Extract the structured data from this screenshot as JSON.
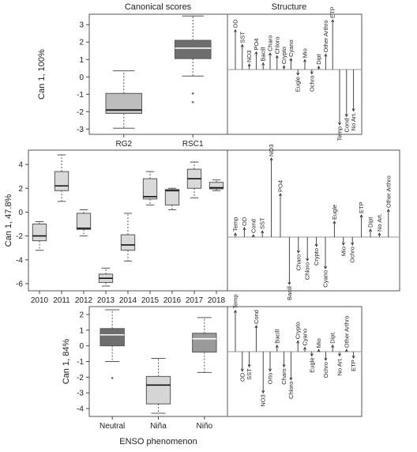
{
  "headers": {
    "left": "Canonical scores",
    "right": "Structure"
  },
  "chart_data": [
    {
      "type": "box",
      "ylabel": "Can 1, 100%",
      "ylim": [
        -3.3,
        3.6
      ],
      "yticks": [
        3,
        2,
        1,
        0,
        -1,
        -2,
        -3
      ],
      "categories": [
        "RG2",
        "RSC1"
      ],
      "boxes": [
        {
          "label": "RG2",
          "min": -2.95,
          "q1": -2.1,
          "median": -1.9,
          "q3": -0.95,
          "max": 0.35,
          "outliers": [],
          "fill": "#bdbdbd"
        },
        {
          "label": "RSC1",
          "min": 0.05,
          "q1": 1.05,
          "median": 1.65,
          "q3": 2.1,
          "max": 3.5,
          "outliers": [
            -0.95,
            -1.45
          ],
          "fill": "#6e6e6e"
        }
      ]
    },
    {
      "type": "biplot",
      "variables": [
        {
          "label": "OD",
          "value": 0.72
        },
        {
          "label": "SST",
          "value": 0.45
        },
        {
          "label": "NO3",
          "value": 0.1
        },
        {
          "label": "PO4",
          "value": 0.32
        },
        {
          "label": "Bacill",
          "value": 0.12
        },
        {
          "label": "Charo",
          "value": 0.3
        },
        {
          "label": "Chloro",
          "value": 0.25
        },
        {
          "label": "Crypto",
          "value": 0.07
        },
        {
          "label": "Cyano",
          "value": 0.2
        },
        {
          "label": "Eugle",
          "value": -0.1
        },
        {
          "label": "Mio",
          "value": 0.18
        },
        {
          "label": "Ochro",
          "value": -0.08
        },
        {
          "label": "Dipt",
          "value": 0.06
        },
        {
          "label": "Other Arthro",
          "value": 0.28
        },
        {
          "label": "ETP",
          "value": 0.9
        },
        {
          "label": "Temp",
          "value": -1.0
        },
        {
          "label": "Cond",
          "value": -0.85
        },
        {
          "label": "No Art.",
          "value": -0.75
        }
      ]
    },
    {
      "type": "box",
      "ylabel": "Can 1, 47.8%",
      "ylim": [
        -6.6,
        5.2
      ],
      "yticks": [
        4,
        2,
        0,
        -2,
        -4,
        -6
      ],
      "categories": [
        "2010",
        "2011",
        "2012",
        "2013",
        "2014",
        "2015",
        "2016",
        "2017",
        "2018"
      ],
      "boxes": [
        {
          "label": "2010",
          "min": -3.2,
          "q1": -2.4,
          "median": -2.0,
          "q3": -1.0,
          "max": -0.8,
          "fill": "#d9d9d9"
        },
        {
          "label": "2011",
          "min": 0.9,
          "q1": 1.8,
          "median": 2.2,
          "q3": 3.4,
          "max": 4.8,
          "fill": "#d9d9d9"
        },
        {
          "label": "2012",
          "min": -2.0,
          "q1": -1.45,
          "median": -1.35,
          "q3": -0.1,
          "max": 0.2,
          "fill": "#d9d9d9"
        },
        {
          "label": "2013",
          "min": -6.2,
          "q1": -5.9,
          "median": -5.55,
          "q3": -5.2,
          "max": -4.7,
          "fill": "#d9d9d9"
        },
        {
          "label": "2014",
          "min": -4.1,
          "q1": -3.2,
          "median": -2.75,
          "q3": -1.9,
          "max": -0.1,
          "fill": "#d9d9d9"
        },
        {
          "label": "2015",
          "min": 0.6,
          "q1": 1.1,
          "median": 1.3,
          "q3": 2.8,
          "max": 3.4,
          "fill": "#d9d9d9"
        },
        {
          "label": "2016",
          "min": 0.2,
          "q1": 0.6,
          "median": 1.8,
          "q3": 1.9,
          "max": 2.0,
          "fill": "#d9d9d9"
        },
        {
          "label": "2017",
          "min": 1.2,
          "q1": 2.0,
          "median": 2.8,
          "q3": 3.6,
          "max": 4.2,
          "fill": "#d9d9d9"
        },
        {
          "label": "2018",
          "min": 1.8,
          "q1": 1.95,
          "median": 2.05,
          "q3": 2.5,
          "max": 2.7,
          "fill": "#d9d9d9"
        }
      ]
    },
    {
      "type": "biplot",
      "variables": [
        {
          "label": "Temp",
          "value": 0.05
        },
        {
          "label": "OD",
          "value": 0.12
        },
        {
          "label": "Cond",
          "value": 0.03
        },
        {
          "label": "SST",
          "value": 0.08
        },
        {
          "label": "NO3",
          "value": 1.0
        },
        {
          "label": "PO4",
          "value": 0.55
        },
        {
          "label": "Bacill",
          "value": -0.6
        },
        {
          "label": "Charo",
          "value": -0.2
        },
        {
          "label": "Chloro",
          "value": -0.3
        },
        {
          "label": "Crypto",
          "value": -0.12
        },
        {
          "label": "Cyano",
          "value": -0.4
        },
        {
          "label": "Eugle",
          "value": 0.2
        },
        {
          "label": "Mio",
          "value": -0.1
        },
        {
          "label": "Ochro",
          "value": -0.1
        },
        {
          "label": "ETP",
          "value": 0.28
        },
        {
          "label": "Dipt",
          "value": 0.1
        },
        {
          "label": "No Art.",
          "value": 0.05
        },
        {
          "label": "Other Arthro",
          "value": 0.35
        }
      ]
    },
    {
      "type": "box",
      "ylabel": "Can 1, 84%",
      "xlabel": "ENSO phenomenon",
      "ylim": [
        -4.5,
        2.5
      ],
      "yticks": [
        2,
        1,
        0,
        -1,
        -2,
        -3,
        -4
      ],
      "categories": [
        "Neutral",
        "Niña",
        "Niño"
      ],
      "boxes": [
        {
          "label": "Neutral",
          "min": -1.0,
          "q1": 0.0,
          "median": 0.7,
          "q3": 1.1,
          "max": 2.3,
          "outliers": [
            -2.05
          ],
          "fill": "#6e6e6e"
        },
        {
          "label": "Niña",
          "min": -4.3,
          "q1": -3.7,
          "median": -2.5,
          "q3": -1.95,
          "max": -0.8,
          "outliers": [],
          "fill": "#d6d6d6"
        },
        {
          "label": "Niño",
          "min": -1.7,
          "q1": -0.4,
          "median": 0.45,
          "q3": 0.8,
          "max": 1.8,
          "outliers": [],
          "fill": "#9a9a9a"
        }
      ]
    },
    {
      "type": "biplot",
      "variables": [
        {
          "label": "Temp",
          "value": 0.95
        },
        {
          "label": "OD",
          "value": -0.45
        },
        {
          "label": "SST",
          "value": -0.35
        },
        {
          "label": "Cond",
          "value": 0.6
        },
        {
          "label": "NO3",
          "value": -0.95
        },
        {
          "label": "Orto",
          "value": -0.45
        },
        {
          "label": "Bacill",
          "value": 0.15
        },
        {
          "label": "Charo",
          "value": -0.35
        },
        {
          "label": "Chloro",
          "value": -0.65
        },
        {
          "label": "Crypto",
          "value": 0.25
        },
        {
          "label": "Cyano",
          "value": 0.1
        },
        {
          "label": "Eugle",
          "value": -0.1
        },
        {
          "label": "Mio",
          "value": 0.05
        },
        {
          "label": "Ochro",
          "value": -0.2
        },
        {
          "label": "Dipt.",
          "value": 0.15
        },
        {
          "label": "No Art.",
          "value": -0.1
        },
        {
          "label": "Other Arthro",
          "value": 0.05
        },
        {
          "label": "ETP",
          "value": -0.15
        }
      ]
    }
  ]
}
